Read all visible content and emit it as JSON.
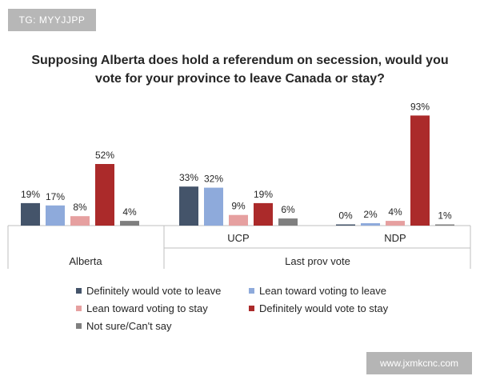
{
  "watermark_top": "TG: MYYJJPP",
  "watermark_bottom": "www.jxmkcnc.com",
  "chart_data": {
    "type": "bar",
    "title_lines": [
      "Supposing Alberta does hold a referendum on secession, would you",
      "vote for your province to leave Canada or stay?"
    ],
    "categories": [
      "Alberta",
      "UCP",
      "NDP"
    ],
    "group_labels": [
      {
        "label": "Alberta",
        "covers": [
          "Alberta"
        ]
      },
      {
        "label": "Last prov vote",
        "covers": [
          "UCP",
          "NDP"
        ]
      }
    ],
    "series": [
      {
        "name": "Definitely would vote to leave",
        "color": "#44546a",
        "values": [
          19,
          33,
          0
        ]
      },
      {
        "name": "Lean toward voting to leave",
        "color": "#8eaadb",
        "values": [
          17,
          32,
          2
        ]
      },
      {
        "name": "Lean toward voting to stay",
        "color": "#e6a0a0",
        "values": [
          8,
          9,
          4
        ]
      },
      {
        "name": "Definitely would vote to stay",
        "color": "#ab2a2a",
        "values": [
          52,
          19,
          93
        ]
      },
      {
        "name": "Not sure/Can't say",
        "color": "#7f7f7f",
        "values": [
          4,
          6,
          1
        ]
      }
    ],
    "value_suffix": "%",
    "ylim": [
      0,
      100
    ],
    "grid": false,
    "legend_position": "bottom"
  }
}
